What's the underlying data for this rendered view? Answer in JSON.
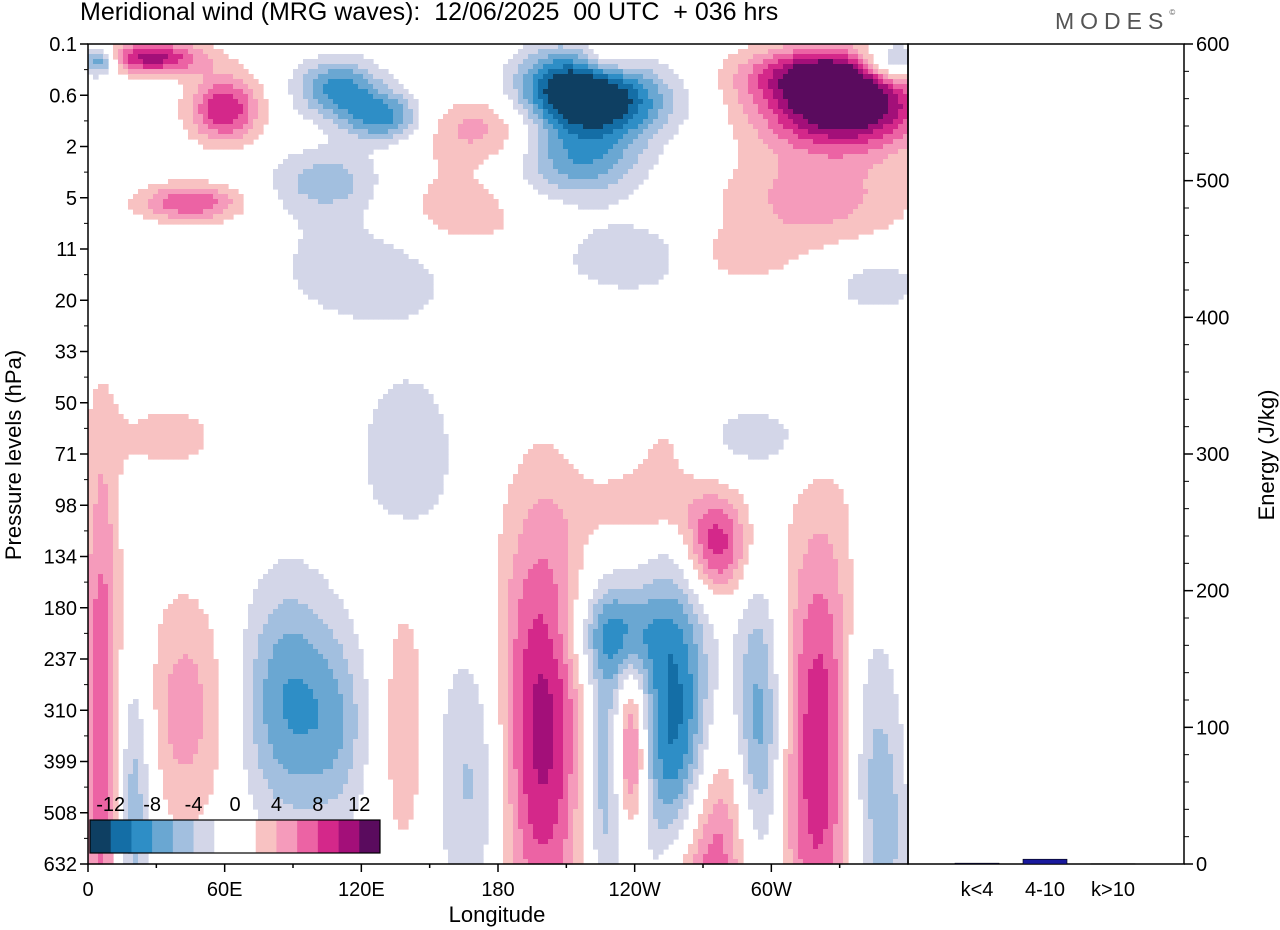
{
  "title": "Meridional wind (MRG waves):  12/06/2025  00 UTC  + 036 hrs",
  "logo": "MODES",
  "logo_mark": "©",
  "chart_data": [
    {
      "type": "heatmap",
      "title": "Meridional wind (MRG waves):  12/06/2025  00 UTC  + 036 hrs",
      "xlabel": "Longitude",
      "ylabel": "Pressure levels (hPa)",
      "x_ticks": [
        "0",
        "60E",
        "120E",
        "180",
        "120W",
        "60W"
      ],
      "x_tick_degrees": [
        0,
        60,
        120,
        180,
        240,
        300
      ],
      "xlim": [
        0,
        360
      ],
      "y_ticks": [
        "0.1",
        "0.6",
        "2",
        "5",
        "11",
        "20",
        "33",
        "50",
        "71",
        "98",
        "134",
        "180",
        "237",
        "310",
        "399",
        "508",
        "632"
      ],
      "colorbar": {
        "labels": [
          "-12",
          "-8",
          "-4",
          "0",
          "4",
          "8",
          "12"
        ],
        "levels": [
          -14,
          -12,
          -10,
          -8,
          -6,
          -4,
          -2,
          0,
          2,
          4,
          6,
          8,
          10,
          12,
          14
        ],
        "colors": [
          "#0e3f62",
          "#146ea6",
          "#2e8ec6",
          "#6aa7d2",
          "#a2bfdf",
          "#d3d6e8",
          "#ffffff",
          "#ffffff",
          "#f8c2c2",
          "#f59bbb",
          "#ec63a4",
          "#d4288a",
          "#a30f79",
          "#5a0b5e"
        ]
      },
      "features": [
        {
          "lon": 5,
          "lev": 1.0,
          "v": -10,
          "w": 6,
          "h": 0.6
        },
        {
          "lon": 28,
          "lev": 0.8,
          "v": 11,
          "w": 16,
          "h": 0.7
        },
        {
          "lon": 60,
          "lev": 3.8,
          "v": 10,
          "w": 11,
          "h": 1.4
        },
        {
          "lon": 45,
          "lev": 9.3,
          "v": 8,
          "w": 16,
          "h": 0.8
        },
        {
          "lon": 110,
          "lev": 2.6,
          "v": -9,
          "w": 13,
          "h": 1.2
        },
        {
          "lon": 130,
          "lev": 4.3,
          "v": -9,
          "w": 12,
          "h": 1.0
        },
        {
          "lon": 105,
          "lev": 8.0,
          "v": -5,
          "w": 18,
          "h": 1.4
        },
        {
          "lon": 125,
          "lev": 13.0,
          "v": -4,
          "w": 30,
          "h": 2.5
        },
        {
          "lon": 175,
          "lev": 5.0,
          "v": 5,
          "w": 22,
          "h": 1.4
        },
        {
          "lon": 160,
          "lev": 10.0,
          "v": 4,
          "w": 25,
          "h": 2.0
        },
        {
          "lon": 208,
          "lev": 2.4,
          "v": -9,
          "w": 15,
          "h": 1.6
        },
        {
          "lon": 228,
          "lev": 3.3,
          "v": -12,
          "w": 20,
          "h": 1.5
        },
        {
          "lon": 215,
          "lev": 6.7,
          "v": -8,
          "w": 20,
          "h": 1.7
        },
        {
          "lon": 228,
          "lev": 0.8,
          "v": 4,
          "w": 8,
          "h": 0.8
        },
        {
          "lon": 325,
          "lev": 1.8,
          "v": 12,
          "w": 25,
          "h": 1.2
        },
        {
          "lon": 332,
          "lev": 3.9,
          "v": 14,
          "w": 25,
          "h": 1.6
        },
        {
          "lon": 353,
          "lev": 1.2,
          "v": -10,
          "w": 10,
          "h": 0.9
        },
        {
          "lon": 320,
          "lev": 9.0,
          "v": 5,
          "w": 30,
          "h": 2.2
        },
        {
          "lon": 238,
          "lev": 12.5,
          "v": -4,
          "w": 22,
          "h": 1.5
        },
        {
          "lon": 285,
          "lev": 12.4,
          "v": 3,
          "w": 18,
          "h": 1.2
        },
        {
          "lon": 345,
          "lev": 14.0,
          "v": -3,
          "w": 20,
          "h": 1.5
        },
        {
          "lon": 35,
          "lev": 23.0,
          "v": 3,
          "w": 18,
          "h": 1.5
        },
        {
          "lon": 140,
          "lev": 24.0,
          "v": -4,
          "w": 15,
          "h": 3.5
        },
        {
          "lon": 255,
          "lev": 23.5,
          "v": 3,
          "w": 12,
          "h": 1.5
        },
        {
          "lon": 295,
          "lev": 23.0,
          "v": -3,
          "w": 25,
          "h": 1.5
        },
        {
          "lon": 248,
          "lev": 27.0,
          "v": 4,
          "w": 22,
          "h": 1.5
        },
        {
          "lon": 276,
          "lev": 29.5,
          "v": 9,
          "w": 10,
          "h": 2.0
        },
        {
          "lon": 6,
          "lev": 40.0,
          "v": 8,
          "w": 6,
          "h": 12.0
        },
        {
          "lon": 20,
          "lev": 44.0,
          "v": -6,
          "w": 6,
          "h": 6.0
        },
        {
          "lon": 43,
          "lev": 39.0,
          "v": 5,
          "w": 14,
          "h": 5.0
        },
        {
          "lon": 88,
          "lev": 38.5,
          "v": -8,
          "w": 15,
          "h": 5.0
        },
        {
          "lon": 110,
          "lev": 40.0,
          "v": -4,
          "w": 10,
          "h": 4.0
        },
        {
          "lon": 139,
          "lev": 40.0,
          "v": 4,
          "w": 7,
          "h": 5.5
        },
        {
          "lon": 170,
          "lev": 43.0,
          "v": -5,
          "w": 12,
          "h": 6.0
        },
        {
          "lon": 199,
          "lev": 40.0,
          "v": 11,
          "w": 14,
          "h": 9.0
        },
        {
          "lon": 228,
          "lev": 42.0,
          "v": -7,
          "w": 8,
          "h": 6.0
        },
        {
          "lon": 238,
          "lev": 41.5,
          "v": 11,
          "w": 5,
          "h": 3.5
        },
        {
          "lon": 232,
          "lev": 34.5,
          "v": -7,
          "w": 14,
          "h": 2.0
        },
        {
          "lon": 258,
          "lev": 40.0,
          "v": -11,
          "w": 11,
          "h": 6.5
        },
        {
          "lon": 277,
          "lev": 47.0,
          "v": 7,
          "w": 10,
          "h": 5.0
        },
        {
          "lon": 262,
          "lev": 50.0,
          "v": 6,
          "w": 9,
          "h": 4.0
        },
        {
          "lon": 295,
          "lev": 40.0,
          "v": -8,
          "w": 8,
          "h": 6.0
        },
        {
          "lon": 324,
          "lev": 41.5,
          "v": 11,
          "w": 14,
          "h": 9.5
        },
        {
          "lon": 340,
          "lev": 42.0,
          "v": -8,
          "w": 10,
          "h": 7.5
        },
        {
          "lon": 352,
          "lev": 47.0,
          "v": -3,
          "w": 6,
          "h": 5.0
        }
      ]
    },
    {
      "type": "bar",
      "categories": [
        "k<4",
        "4-10",
        "k>10"
      ],
      "values": [
        0.6,
        3.5,
        0.2
      ],
      "ylabel": "Energy (J/kg)",
      "ylim": [
        0,
        600
      ],
      "y_ticks": [
        "0",
        "100",
        "200",
        "300",
        "400",
        "500",
        "600"
      ],
      "bar_color": "#1a1a9e"
    }
  ]
}
